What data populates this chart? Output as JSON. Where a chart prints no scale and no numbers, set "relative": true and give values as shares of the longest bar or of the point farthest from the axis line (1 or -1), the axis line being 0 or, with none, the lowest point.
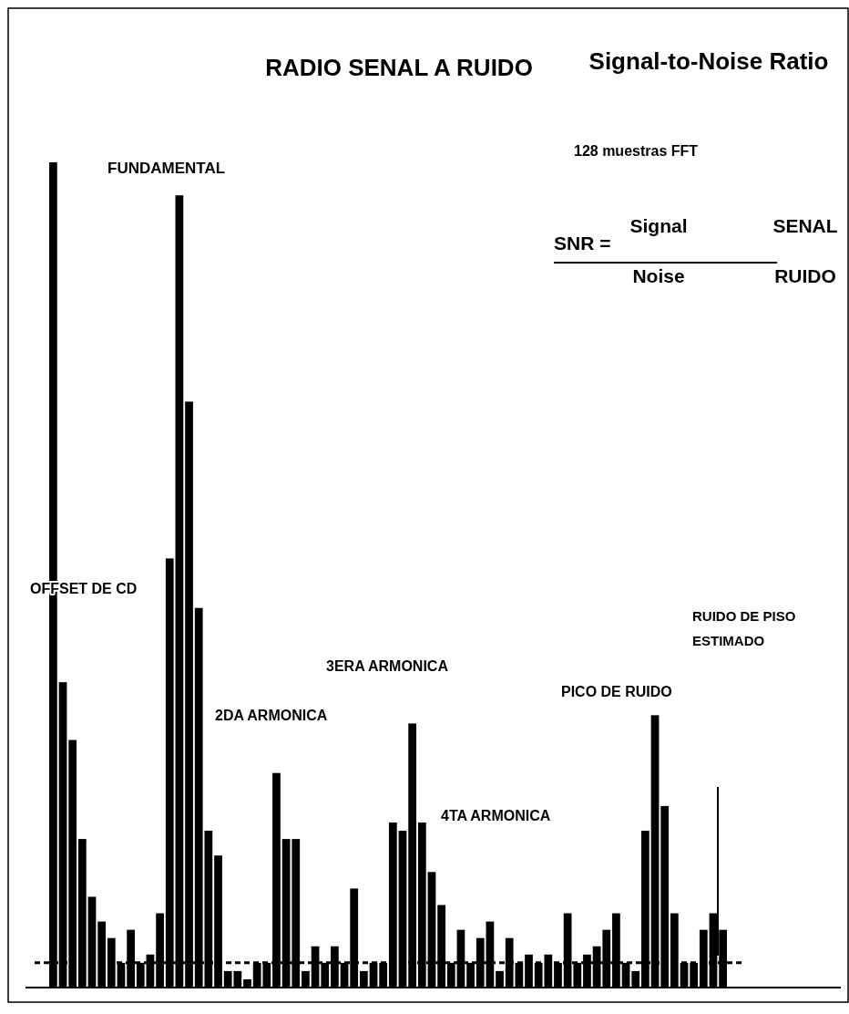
{
  "chart_data": {
    "type": "bar",
    "relative": true,
    "title": "RADIO SENAL A RUIDO",
    "subtitle": "Signal-to-Noise Ratio",
    "categories": [
      null,
      null,
      null,
      null,
      null,
      null,
      null,
      null,
      null,
      null,
      null,
      null,
      null,
      null,
      null,
      null,
      null,
      null,
      null,
      null,
      null,
      null,
      null,
      null,
      null,
      null,
      null,
      null,
      null,
      null,
      null,
      null,
      null,
      null,
      null,
      null,
      null,
      null,
      null,
      null,
      null,
      null,
      null,
      null,
      null,
      null,
      null,
      null,
      null,
      null,
      null,
      null,
      null,
      null,
      null,
      null,
      null,
      null,
      null,
      null,
      null,
      null,
      null,
      null,
      null,
      null,
      null,
      null,
      null,
      null
    ],
    "values": [
      1.0,
      0.37,
      0.3,
      0.18,
      0.11,
      0.08,
      0.06,
      0.03,
      0.07,
      0.03,
      0.04,
      0.09,
      0.52,
      0.96,
      0.71,
      0.46,
      0.19,
      0.16,
      0.02,
      0.02,
      0.01,
      0.03,
      0.03,
      0.26,
      0.18,
      0.18,
      0.02,
      0.05,
      0.03,
      0.05,
      0.03,
      0.12,
      0.02,
      0.03,
      0.03,
      0.2,
      0.19,
      0.32,
      0.2,
      0.14,
      0.1,
      0.03,
      0.07,
      0.03,
      0.06,
      0.08,
      0.02,
      0.06,
      0.03,
      0.04,
      0.03,
      0.04,
      0.03,
      0.09,
      0.03,
      0.04,
      0.05,
      0.07,
      0.09,
      0.03,
      0.02,
      0.19,
      0.33,
      0.22,
      0.09,
      0.03,
      0.03,
      0.07,
      0.09,
      0.07
    ],
    "color": "#000000",
    "ref_lines": [
      {
        "axis": "y",
        "value": 0.03,
        "line_style": "dashed"
      }
    ],
    "annotations": [
      "FUNDAMENTAL",
      "OFFSET DE CD",
      "2DA ARMONICA",
      "3ERA  ARMONICA",
      "4TA ARMONICA",
      "PICO DE RUIDO",
      "RUIDO DE PISO",
      "ESTIMADO",
      "128 muestras FFT",
      "SNR =",
      "Signal",
      "Noise",
      "SENAL",
      "RUIDO"
    ]
  }
}
